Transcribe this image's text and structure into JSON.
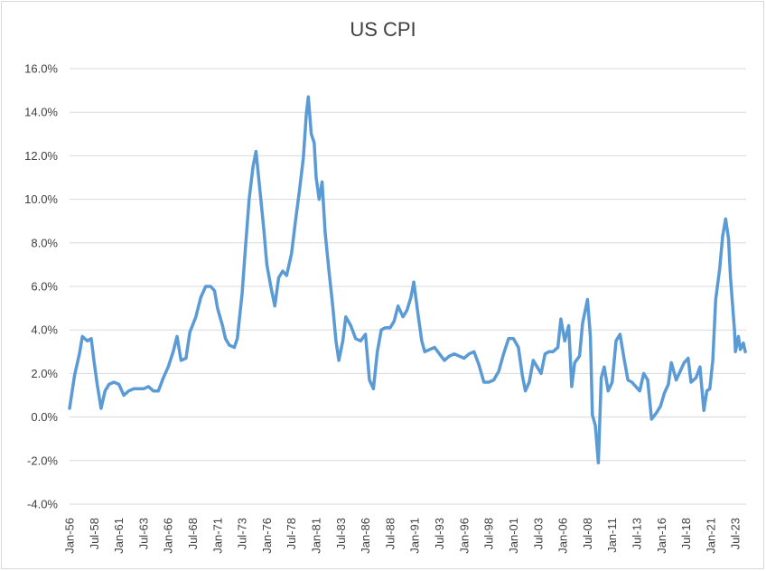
{
  "chart_data": {
    "type": "line",
    "title": "US CPI",
    "xlabel": "",
    "ylabel": "",
    "ylim": [
      -4,
      16
    ],
    "yticks": [
      "-4.0%",
      "-2.0%",
      "0.0%",
      "2.0%",
      "4.0%",
      "6.0%",
      "8.0%",
      "10.0%",
      "12.0%",
      "14.0%",
      "16.0%"
    ],
    "xtick_labels": [
      "Jan-56",
      "Jul-58",
      "Jan-61",
      "Jul-63",
      "Jan-66",
      "Jul-68",
      "Jan-71",
      "Jul-73",
      "Jan-76",
      "Jul-78",
      "Jan-81",
      "Jul-83",
      "Jan-86",
      "Jul-88",
      "Jan-91",
      "Jul-93",
      "Jan-96",
      "Jul-98",
      "Jan-01",
      "Jul-03",
      "Jan-06",
      "Jul-08",
      "Jan-11",
      "Jul-13",
      "Jan-16",
      "Jul-18",
      "Jan-21",
      "Jul-23"
    ],
    "grid": true,
    "line_color": "#5B9BD5",
    "series": [
      {
        "name": "",
        "points": [
          [
            1956.0,
            0.4
          ],
          [
            1956.5,
            1.9
          ],
          [
            1957.0,
            2.9
          ],
          [
            1957.3,
            3.7
          ],
          [
            1957.8,
            3.5
          ],
          [
            1958.2,
            3.6
          ],
          [
            1958.5,
            2.5
          ],
          [
            1958.8,
            1.5
          ],
          [
            1959.2,
            0.4
          ],
          [
            1959.6,
            1.2
          ],
          [
            1960.0,
            1.5
          ],
          [
            1960.5,
            1.6
          ],
          [
            1961.0,
            1.5
          ],
          [
            1961.5,
            1.0
          ],
          [
            1962.0,
            1.2
          ],
          [
            1962.5,
            1.3
          ],
          [
            1963.0,
            1.3
          ],
          [
            1963.5,
            1.3
          ],
          [
            1964.0,
            1.4
          ],
          [
            1964.5,
            1.2
          ],
          [
            1965.0,
            1.2
          ],
          [
            1965.5,
            1.8
          ],
          [
            1966.0,
            2.3
          ],
          [
            1966.5,
            3.0
          ],
          [
            1966.9,
            3.7
          ],
          [
            1967.3,
            2.6
          ],
          [
            1967.8,
            2.7
          ],
          [
            1968.2,
            3.9
          ],
          [
            1968.8,
            4.6
          ],
          [
            1969.3,
            5.5
          ],
          [
            1969.8,
            6.0
          ],
          [
            1970.3,
            6.0
          ],
          [
            1970.7,
            5.8
          ],
          [
            1971.0,
            5.0
          ],
          [
            1971.5,
            4.2
          ],
          [
            1971.8,
            3.6
          ],
          [
            1972.2,
            3.3
          ],
          [
            1972.7,
            3.2
          ],
          [
            1973.0,
            3.6
          ],
          [
            1973.5,
            5.7
          ],
          [
            1973.8,
            7.6
          ],
          [
            1974.2,
            10.0
          ],
          [
            1974.6,
            11.5
          ],
          [
            1974.9,
            12.2
          ],
          [
            1975.3,
            10.4
          ],
          [
            1975.7,
            8.6
          ],
          [
            1976.0,
            7.0
          ],
          [
            1976.4,
            6.0
          ],
          [
            1976.8,
            5.1
          ],
          [
            1977.2,
            6.4
          ],
          [
            1977.6,
            6.7
          ],
          [
            1978.0,
            6.5
          ],
          [
            1978.5,
            7.5
          ],
          [
            1978.9,
            9.0
          ],
          [
            1979.3,
            10.4
          ],
          [
            1979.7,
            11.9
          ],
          [
            1980.0,
            13.9
          ],
          [
            1980.2,
            14.7
          ],
          [
            1980.5,
            13.0
          ],
          [
            1980.8,
            12.6
          ],
          [
            1981.0,
            11.0
          ],
          [
            1981.3,
            10.0
          ],
          [
            1981.6,
            10.8
          ],
          [
            1981.9,
            8.5
          ],
          [
            1982.3,
            6.7
          ],
          [
            1982.7,
            5.0
          ],
          [
            1983.0,
            3.5
          ],
          [
            1983.3,
            2.6
          ],
          [
            1983.7,
            3.5
          ],
          [
            1984.0,
            4.6
          ],
          [
            1984.5,
            4.2
          ],
          [
            1985.0,
            3.6
          ],
          [
            1985.5,
            3.5
          ],
          [
            1986.0,
            3.8
          ],
          [
            1986.4,
            1.7
          ],
          [
            1986.8,
            1.3
          ],
          [
            1987.2,
            3.0
          ],
          [
            1987.6,
            4.0
          ],
          [
            1988.0,
            4.1
          ],
          [
            1988.5,
            4.1
          ],
          [
            1988.9,
            4.4
          ],
          [
            1989.3,
            5.1
          ],
          [
            1989.8,
            4.6
          ],
          [
            1990.2,
            4.9
          ],
          [
            1990.6,
            5.5
          ],
          [
            1990.9,
            6.2
          ],
          [
            1991.3,
            4.8
          ],
          [
            1991.7,
            3.5
          ],
          [
            1992.0,
            3.0
          ],
          [
            1992.5,
            3.1
          ],
          [
            1993.0,
            3.2
          ],
          [
            1993.5,
            2.9
          ],
          [
            1994.0,
            2.6
          ],
          [
            1994.5,
            2.8
          ],
          [
            1995.0,
            2.9
          ],
          [
            1995.5,
            2.8
          ],
          [
            1996.0,
            2.7
          ],
          [
            1996.5,
            2.9
          ],
          [
            1997.0,
            3.0
          ],
          [
            1997.5,
            2.4
          ],
          [
            1998.0,
            1.6
          ],
          [
            1998.5,
            1.6
          ],
          [
            1999.0,
            1.7
          ],
          [
            1999.5,
            2.1
          ],
          [
            2000.0,
            2.9
          ],
          [
            2000.5,
            3.6
          ],
          [
            2001.0,
            3.6
          ],
          [
            2001.5,
            3.2
          ],
          [
            2001.9,
            1.9
          ],
          [
            2002.2,
            1.2
          ],
          [
            2002.6,
            1.6
          ],
          [
            2003.0,
            2.6
          ],
          [
            2003.4,
            2.3
          ],
          [
            2003.8,
            2.0
          ],
          [
            2004.2,
            2.9
          ],
          [
            2004.6,
            3.0
          ],
          [
            2005.0,
            3.0
          ],
          [
            2005.5,
            3.2
          ],
          [
            2005.8,
            4.5
          ],
          [
            2006.2,
            3.5
          ],
          [
            2006.6,
            4.2
          ],
          [
            2006.9,
            1.4
          ],
          [
            2007.2,
            2.5
          ],
          [
            2007.7,
            2.8
          ],
          [
            2008.0,
            4.3
          ],
          [
            2008.5,
            5.4
          ],
          [
            2008.8,
            3.7
          ],
          [
            2009.0,
            0.1
          ],
          [
            2009.3,
            -0.4
          ],
          [
            2009.6,
            -2.1
          ],
          [
            2009.9,
            1.8
          ],
          [
            2010.2,
            2.3
          ],
          [
            2010.6,
            1.2
          ],
          [
            2011.0,
            1.6
          ],
          [
            2011.4,
            3.5
          ],
          [
            2011.8,
            3.8
          ],
          [
            2012.2,
            2.7
          ],
          [
            2012.6,
            1.7
          ],
          [
            2013.0,
            1.6
          ],
          [
            2013.4,
            1.4
          ],
          [
            2013.8,
            1.2
          ],
          [
            2014.2,
            2.0
          ],
          [
            2014.6,
            1.7
          ],
          [
            2015.0,
            -0.1
          ],
          [
            2015.5,
            0.2
          ],
          [
            2015.9,
            0.5
          ],
          [
            2016.3,
            1.1
          ],
          [
            2016.7,
            1.5
          ],
          [
            2017.0,
            2.5
          ],
          [
            2017.5,
            1.7
          ],
          [
            2017.9,
            2.1
          ],
          [
            2018.3,
            2.5
          ],
          [
            2018.7,
            2.7
          ],
          [
            2019.0,
            1.6
          ],
          [
            2019.5,
            1.8
          ],
          [
            2019.9,
            2.3
          ],
          [
            2020.3,
            0.3
          ],
          [
            2020.6,
            1.2
          ],
          [
            2020.9,
            1.3
          ],
          [
            2021.2,
            2.6
          ],
          [
            2021.5,
            5.4
          ],
          [
            2021.9,
            6.8
          ],
          [
            2022.2,
            8.3
          ],
          [
            2022.5,
            9.1
          ],
          [
            2022.8,
            8.2
          ],
          [
            2023.0,
            6.4
          ],
          [
            2023.4,
            4.0
          ],
          [
            2023.5,
            3.0
          ],
          [
            2023.8,
            3.7
          ],
          [
            2024.0,
            3.1
          ],
          [
            2024.3,
            3.4
          ],
          [
            2024.5,
            3.0
          ]
        ]
      }
    ]
  }
}
